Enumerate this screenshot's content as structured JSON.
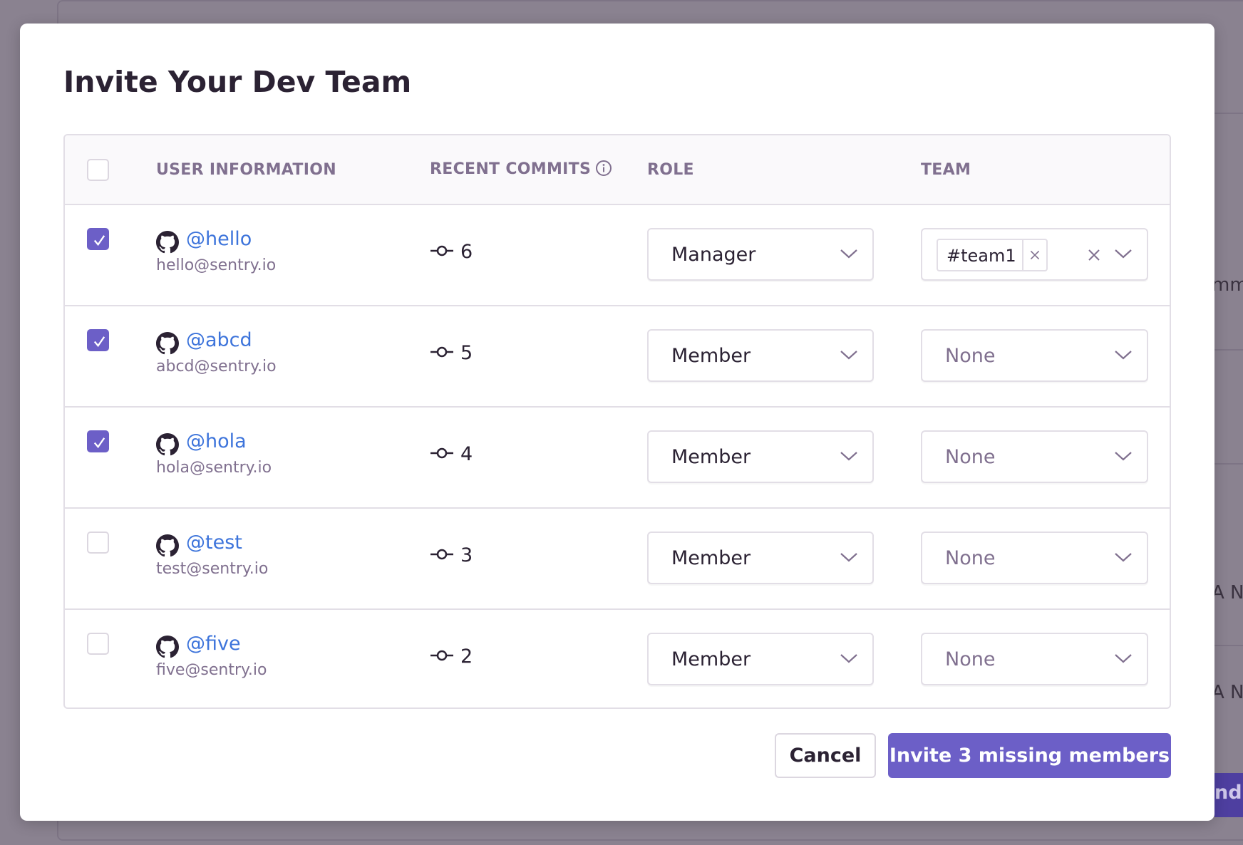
{
  "modal": {
    "title": "Invite Your Dev Team"
  },
  "table": {
    "headers": {
      "user": "USER INFORMATION",
      "commits": "RECENT COMMITS",
      "role": "ROLE",
      "team": "TEAM"
    },
    "rows": [
      {
        "checked": true,
        "username": "@hello",
        "email": "hello@sentry.io",
        "commits": "6",
        "role": "Manager",
        "team": "#team1"
      },
      {
        "checked": true,
        "username": "@abcd",
        "email": "abcd@sentry.io",
        "commits": "5",
        "role": "Member",
        "team": "None"
      },
      {
        "checked": true,
        "username": "@hola",
        "email": "hola@sentry.io",
        "commits": "4",
        "role": "Member",
        "team": "None"
      },
      {
        "checked": false,
        "username": "@test",
        "email": "test@sentry.io",
        "commits": "3",
        "role": "Member",
        "team": "None"
      },
      {
        "checked": false,
        "username": "@five",
        "email": "five@sentry.io",
        "commits": "2",
        "role": "Member",
        "team": "None"
      }
    ]
  },
  "buttons": {
    "cancel": "Cancel",
    "invite": "Invite 3 missing members"
  },
  "background": {
    "text1": "mmit",
    "text2": "A No",
    "text3": "A No",
    "button": "nd"
  },
  "colors": {
    "accent": "#6c5fc7",
    "link": "#3d74db"
  }
}
